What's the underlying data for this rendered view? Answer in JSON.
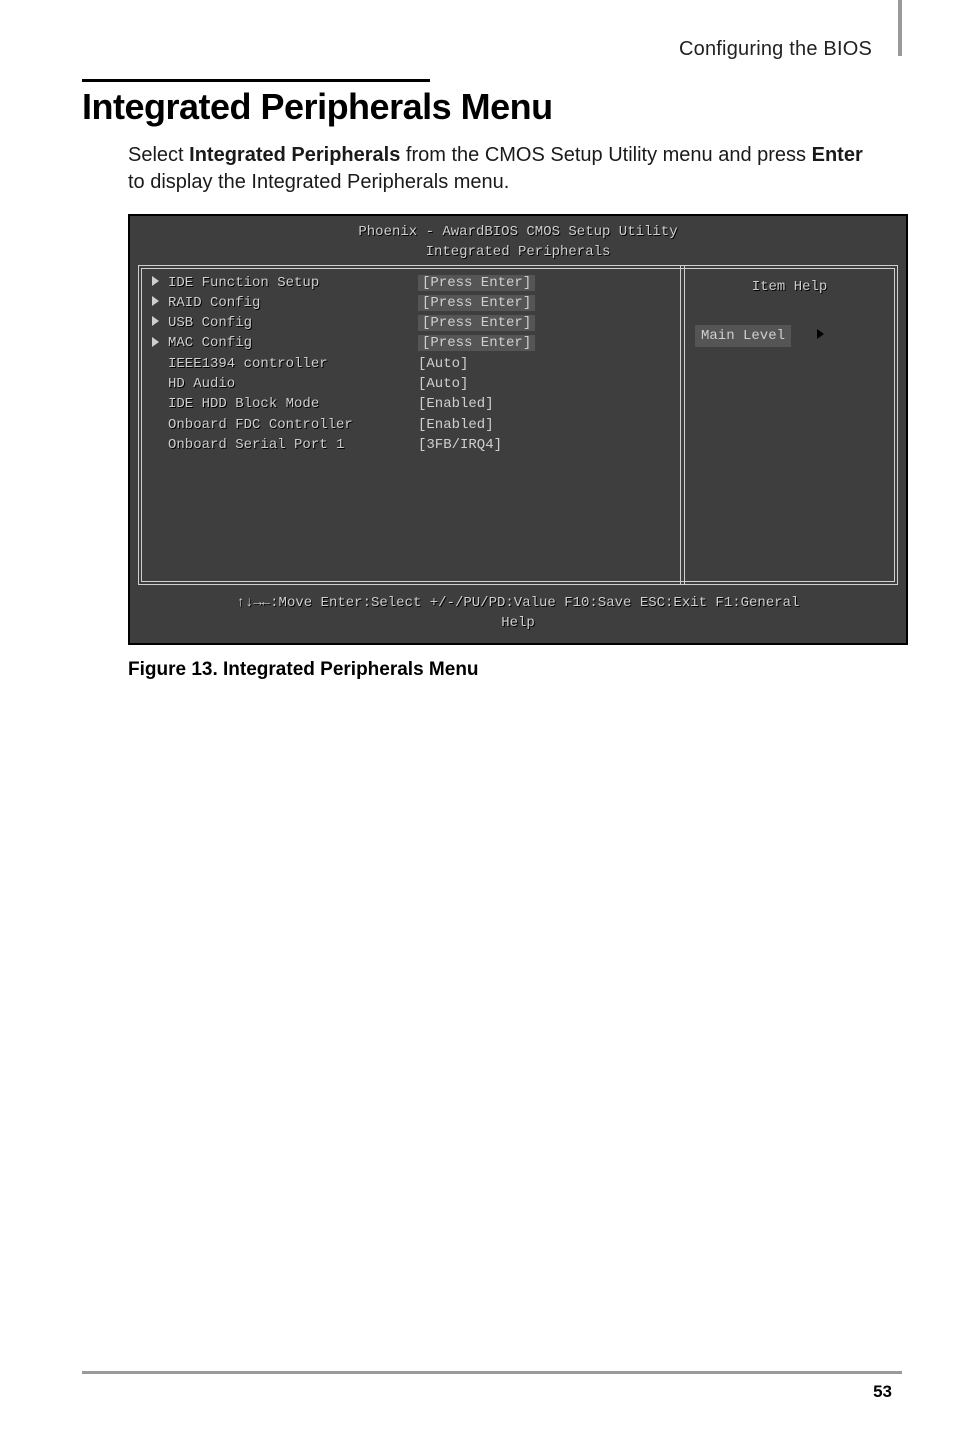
{
  "header": {
    "section": "Configuring the BIOS"
  },
  "title": "Integrated Peripherals Menu",
  "intro": {
    "pre": "Select ",
    "b1": "Integrated Peripherals",
    "mid": " from the CMOS Setup Utility menu and press ",
    "b2": "Enter",
    "post": " to display the Integrated Peripherals menu."
  },
  "bios": {
    "title_line1": "Phoenix - AwardBIOS CMOS Setup Utility",
    "title_line2": "Integrated Peripherals",
    "help_title": "Item Help",
    "main_level": "Main Level",
    "rows": [
      {
        "arrow": true,
        "label": "IDE Function Setup",
        "value": "[Press Enter]",
        "hl": true
      },
      {
        "arrow": true,
        "label": "RAID Config",
        "value": "[Press Enter]",
        "hl": true
      },
      {
        "arrow": true,
        "label": "USB Config",
        "value": "[Press Enter]",
        "hl": true
      },
      {
        "arrow": true,
        "label": "MAC Config",
        "value": "[Press Enter]",
        "hl": true
      },
      {
        "arrow": false,
        "label": "IEEE1394 controller",
        "value": "[Auto]",
        "hl": false
      },
      {
        "arrow": false,
        "label": "HD Audio",
        "value": "[Auto]",
        "hl": false
      },
      {
        "arrow": false,
        "label": "IDE HDD Block Mode",
        "value": "[Enabled]",
        "hl": false
      },
      {
        "arrow": false,
        "label": "Onboard FDC Controller",
        "value": "[Enabled]",
        "hl": false
      },
      {
        "arrow": false,
        "label": "Onboard Serial Port 1",
        "value": "[3FB/IRQ4]",
        "hl": false
      }
    ],
    "footer_line1": "↑↓→←:Move  Enter:Select  +/-/PU/PD:Value  F10:Save  ESC:Exit  F1:General",
    "footer_line2": "Help"
  },
  "caption": "Figure 13. Integrated Peripherals Menu",
  "page_number": "53",
  "colors": {
    "bios_bg": "#3e3e3e",
    "bios_fg": "#cfcfcf",
    "bios_hl": "#555555",
    "rule_grey": "#9a9a9a"
  }
}
